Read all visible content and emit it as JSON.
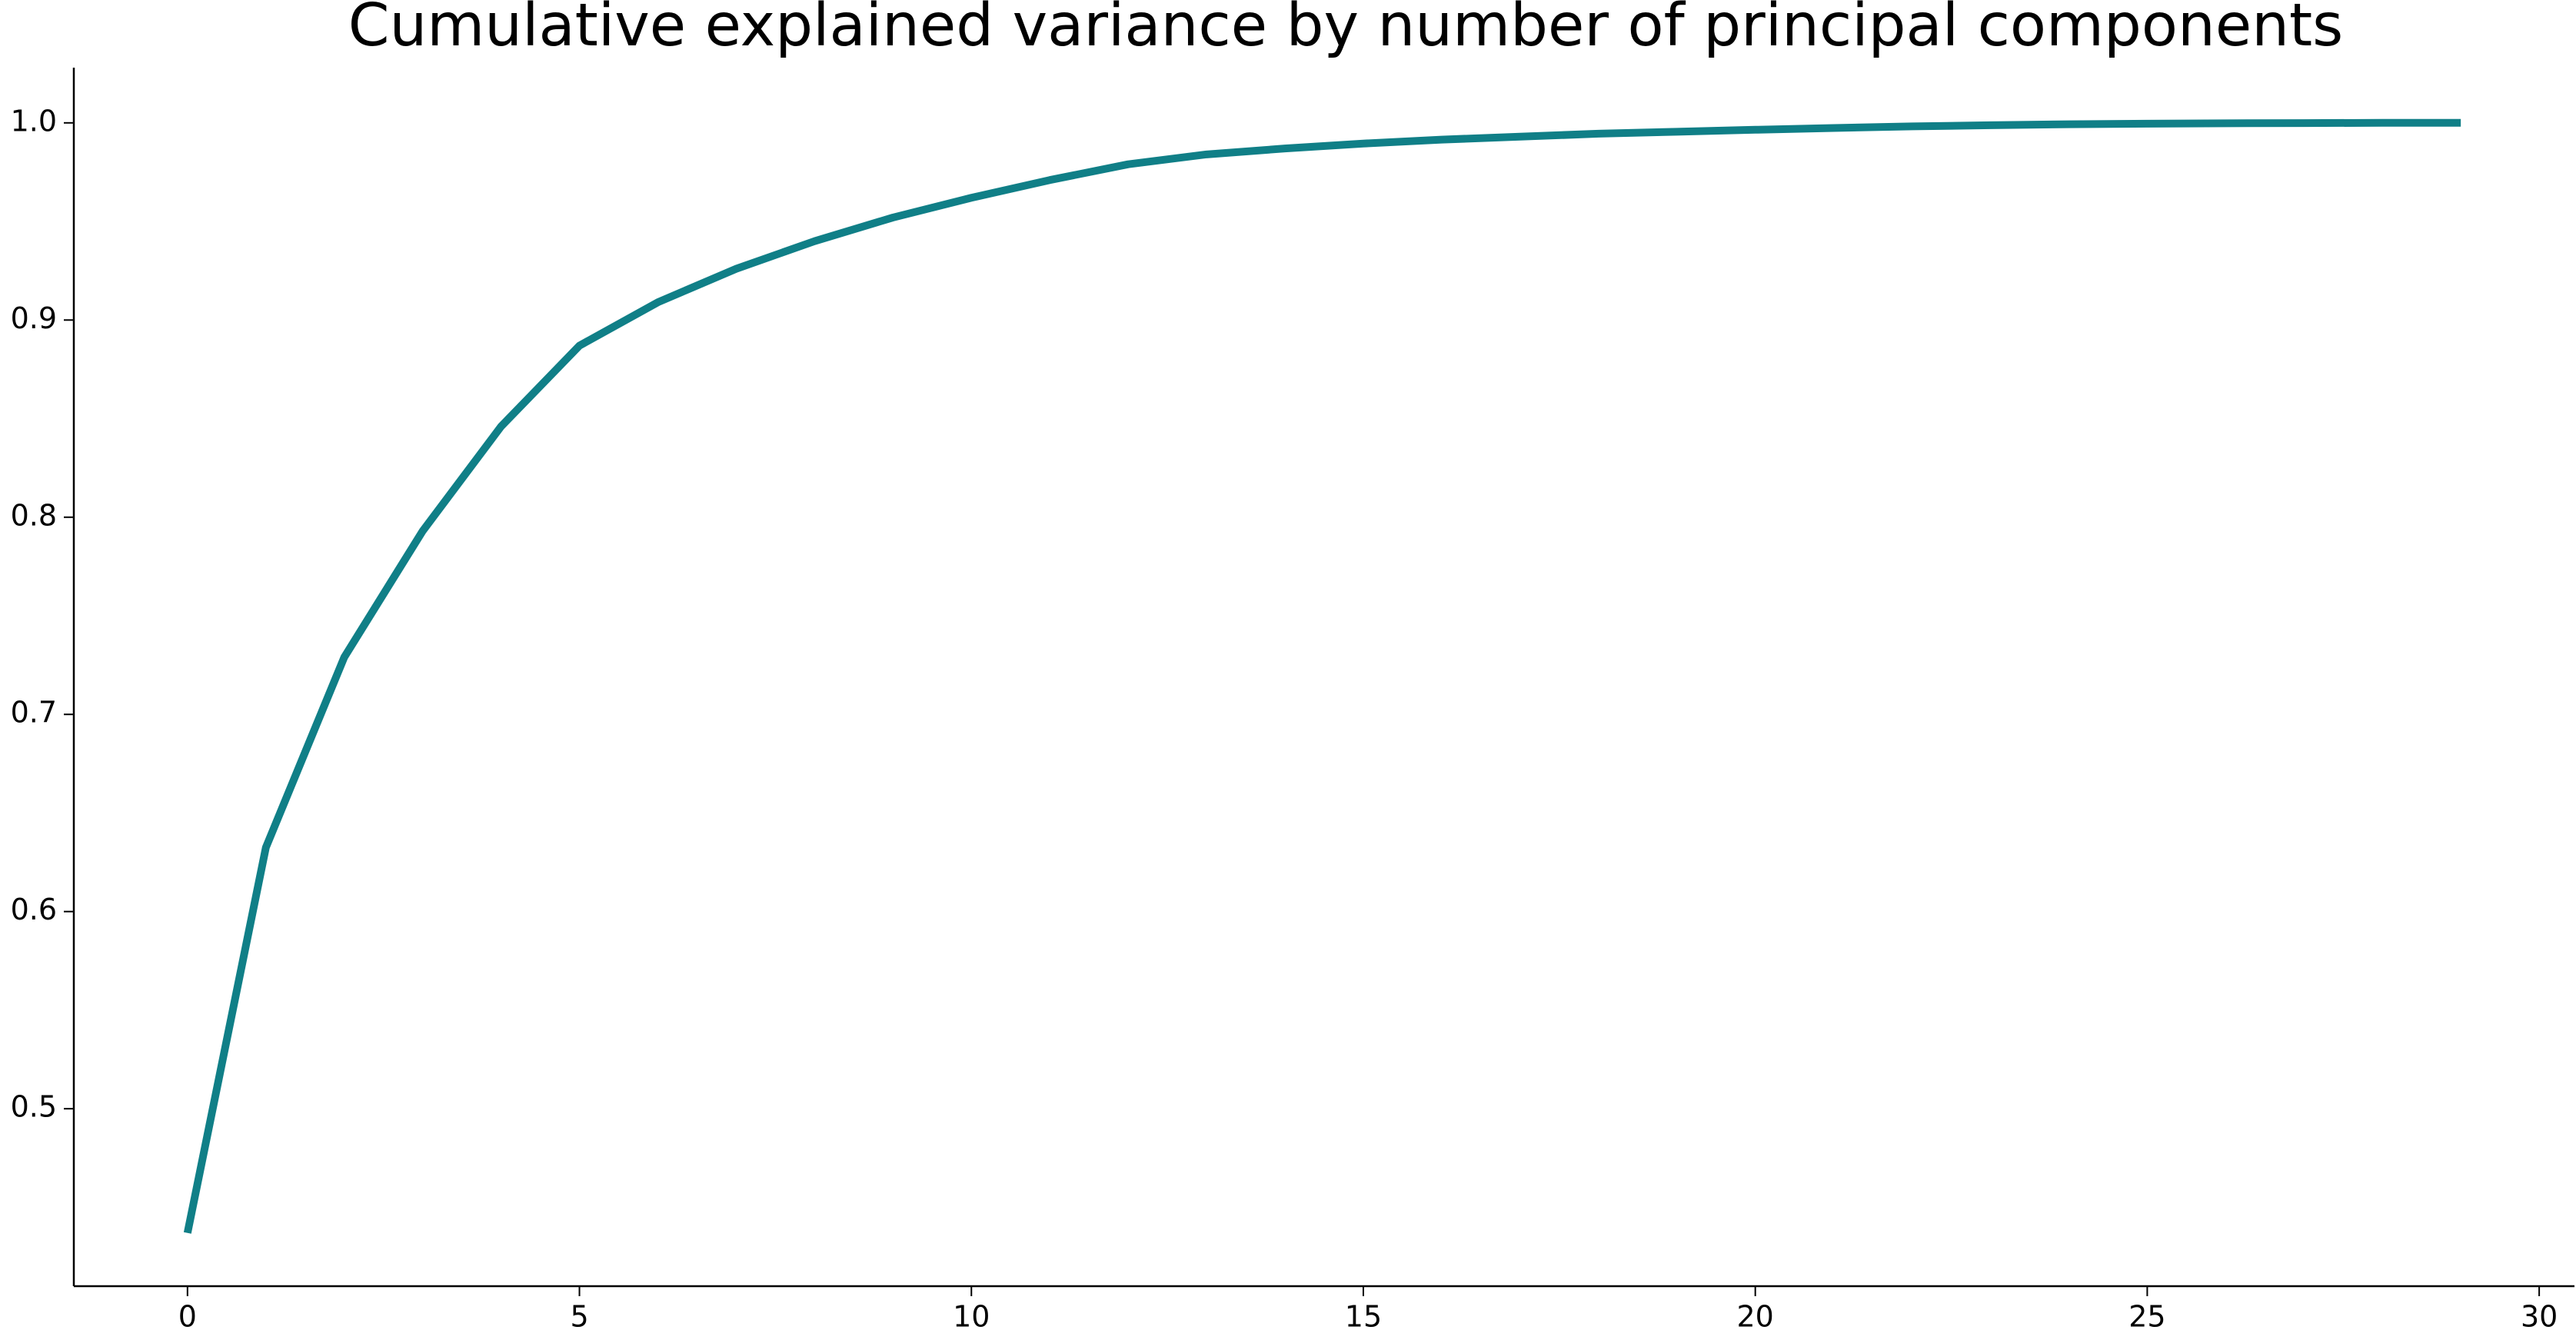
{
  "chart_data": {
    "type": "line",
    "title": "Cumulative explained variance by number of principal components",
    "x": [
      0,
      1,
      2,
      3,
      4,
      5,
      6,
      7,
      8,
      9,
      10,
      11,
      12,
      13,
      14,
      15,
      16,
      17,
      18,
      19,
      20,
      21,
      22,
      23,
      24,
      25,
      26,
      27,
      28,
      29
    ],
    "values": [
      0.437,
      0.6325,
      0.729,
      0.793,
      0.846,
      0.887,
      0.909,
      0.926,
      0.94,
      0.952,
      0.962,
      0.971,
      0.979,
      0.984,
      0.987,
      0.9895,
      0.9915,
      0.993,
      0.9945,
      0.9955,
      0.9965,
      0.9974,
      0.9982,
      0.9988,
      0.9993,
      0.9996,
      0.9998,
      0.9999,
      1.0,
      1.0
    ],
    "color": "#107f87",
    "xlim": [
      -1.45,
      30.45
    ],
    "xticks": [
      0,
      5,
      10,
      15,
      20,
      25,
      30
    ],
    "ylim": [
      0.41,
      1.028
    ],
    "yticks": [
      0.5,
      0.6,
      0.7,
      0.8,
      0.9,
      {
        "value": 1,
        "label": "1.0"
      }
    ],
    "grid": false
  }
}
